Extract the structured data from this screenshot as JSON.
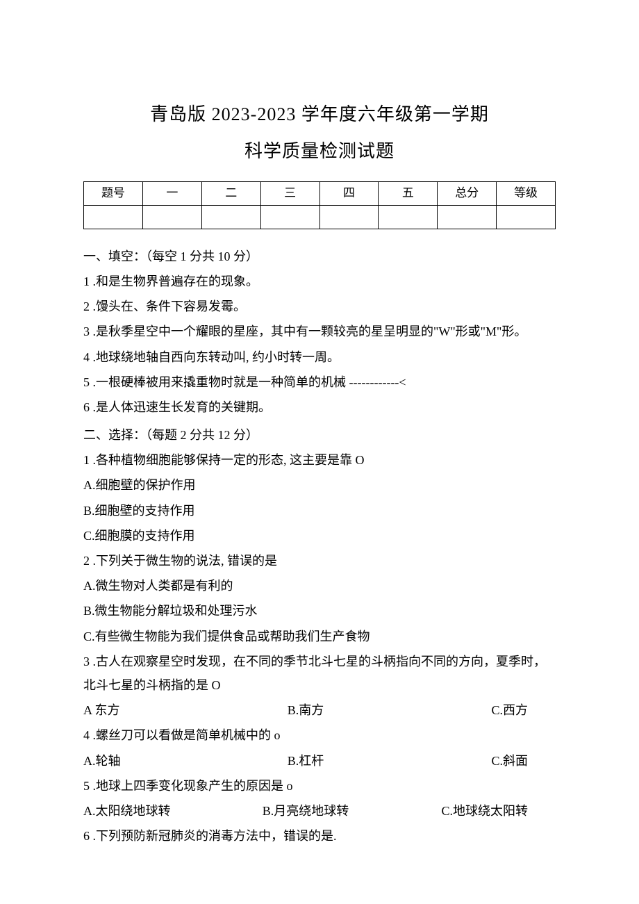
{
  "title": {
    "line1": "青岛版 2023-2023 学年度六年级第一学期",
    "line2": "科学质量检测试题"
  },
  "score_table": {
    "headers": [
      "题号",
      "一",
      "二",
      "三",
      "四",
      "五",
      "总分",
      "等级"
    ]
  },
  "section1": {
    "heading": "一、填空：（每空 1 分共 10 分）",
    "items": [
      "1 .和是生物界普遍存在的现象。",
      "2 .馒头在、条件下容易发霉。",
      "3 .是秋季星空中一个耀眼的星座，其中有一颗较亮的星呈明显的\"W\"形或\"M\"形。",
      "4 .地球绕地轴自西向东转动叫, 约小时转一周。",
      "5 .一根硬棒被用来撬重物时就是一种简单的机械 ------------<",
      "6 .是人体迅速生长发育的关键期。"
    ]
  },
  "section2": {
    "heading": "二、选择：（每题 2 分共 12 分）",
    "q1": {
      "stem": "1 .各种植物细胞能够保持一定的形态, 这主要是靠 O",
      "a": "A.细胞壁的保护作用",
      "b": "B.细胞壁的支持作用",
      "c": "C.细胞膜的支持作用"
    },
    "q2": {
      "stem": "2 .下列关于微生物的说法, 错误的是",
      "a": "A.微生物对人类都是有利的",
      "b": "B.微生物能分解垃圾和处理污水",
      "c": "C.有些微生物能为我们提供食品或帮助我们生产食物"
    },
    "q3": {
      "stem": "3 .古人在观察星空时发现，在不同的季节北斗七星的斗柄指向不同的方向，夏季时，北斗七星的斗柄指的是 O",
      "a": "A 东方",
      "b": "B.南方",
      "c": "C.西方"
    },
    "q4": {
      "stem": "4 .螺丝刀可以看做是简单机械中的 o",
      "a": "A.轮轴",
      "b": "B.杠杆",
      "c": "C.斜面"
    },
    "q5": {
      "stem": "5 .地球上四季变化现象产生的原因是 o",
      "a": "A.太阳绕地球转",
      "b": "B.月亮绕地球转",
      "c": "C.地球绕太阳转"
    },
    "q6": {
      "stem": "6 .下列预防新冠肺炎的消毒方法中，错误的是."
    }
  }
}
